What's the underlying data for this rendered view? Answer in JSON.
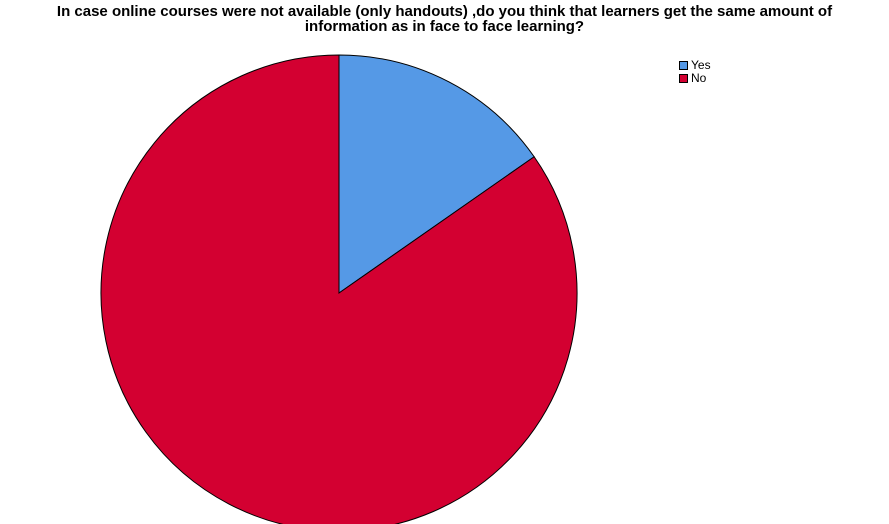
{
  "chart_data": {
    "type": "pie",
    "title_lines": [
      "In case online courses were not available (only handouts) ,do you think that learners get the same amount of",
      "information as in face to face learning?"
    ],
    "categories": [
      "Yes",
      "No"
    ],
    "values": [
      15.3,
      84.7
    ],
    "colors": [
      "#5599e6",
      "#d30031"
    ],
    "legend_position": "top-right",
    "start_angle_deg": 0,
    "direction": "clockwise"
  }
}
